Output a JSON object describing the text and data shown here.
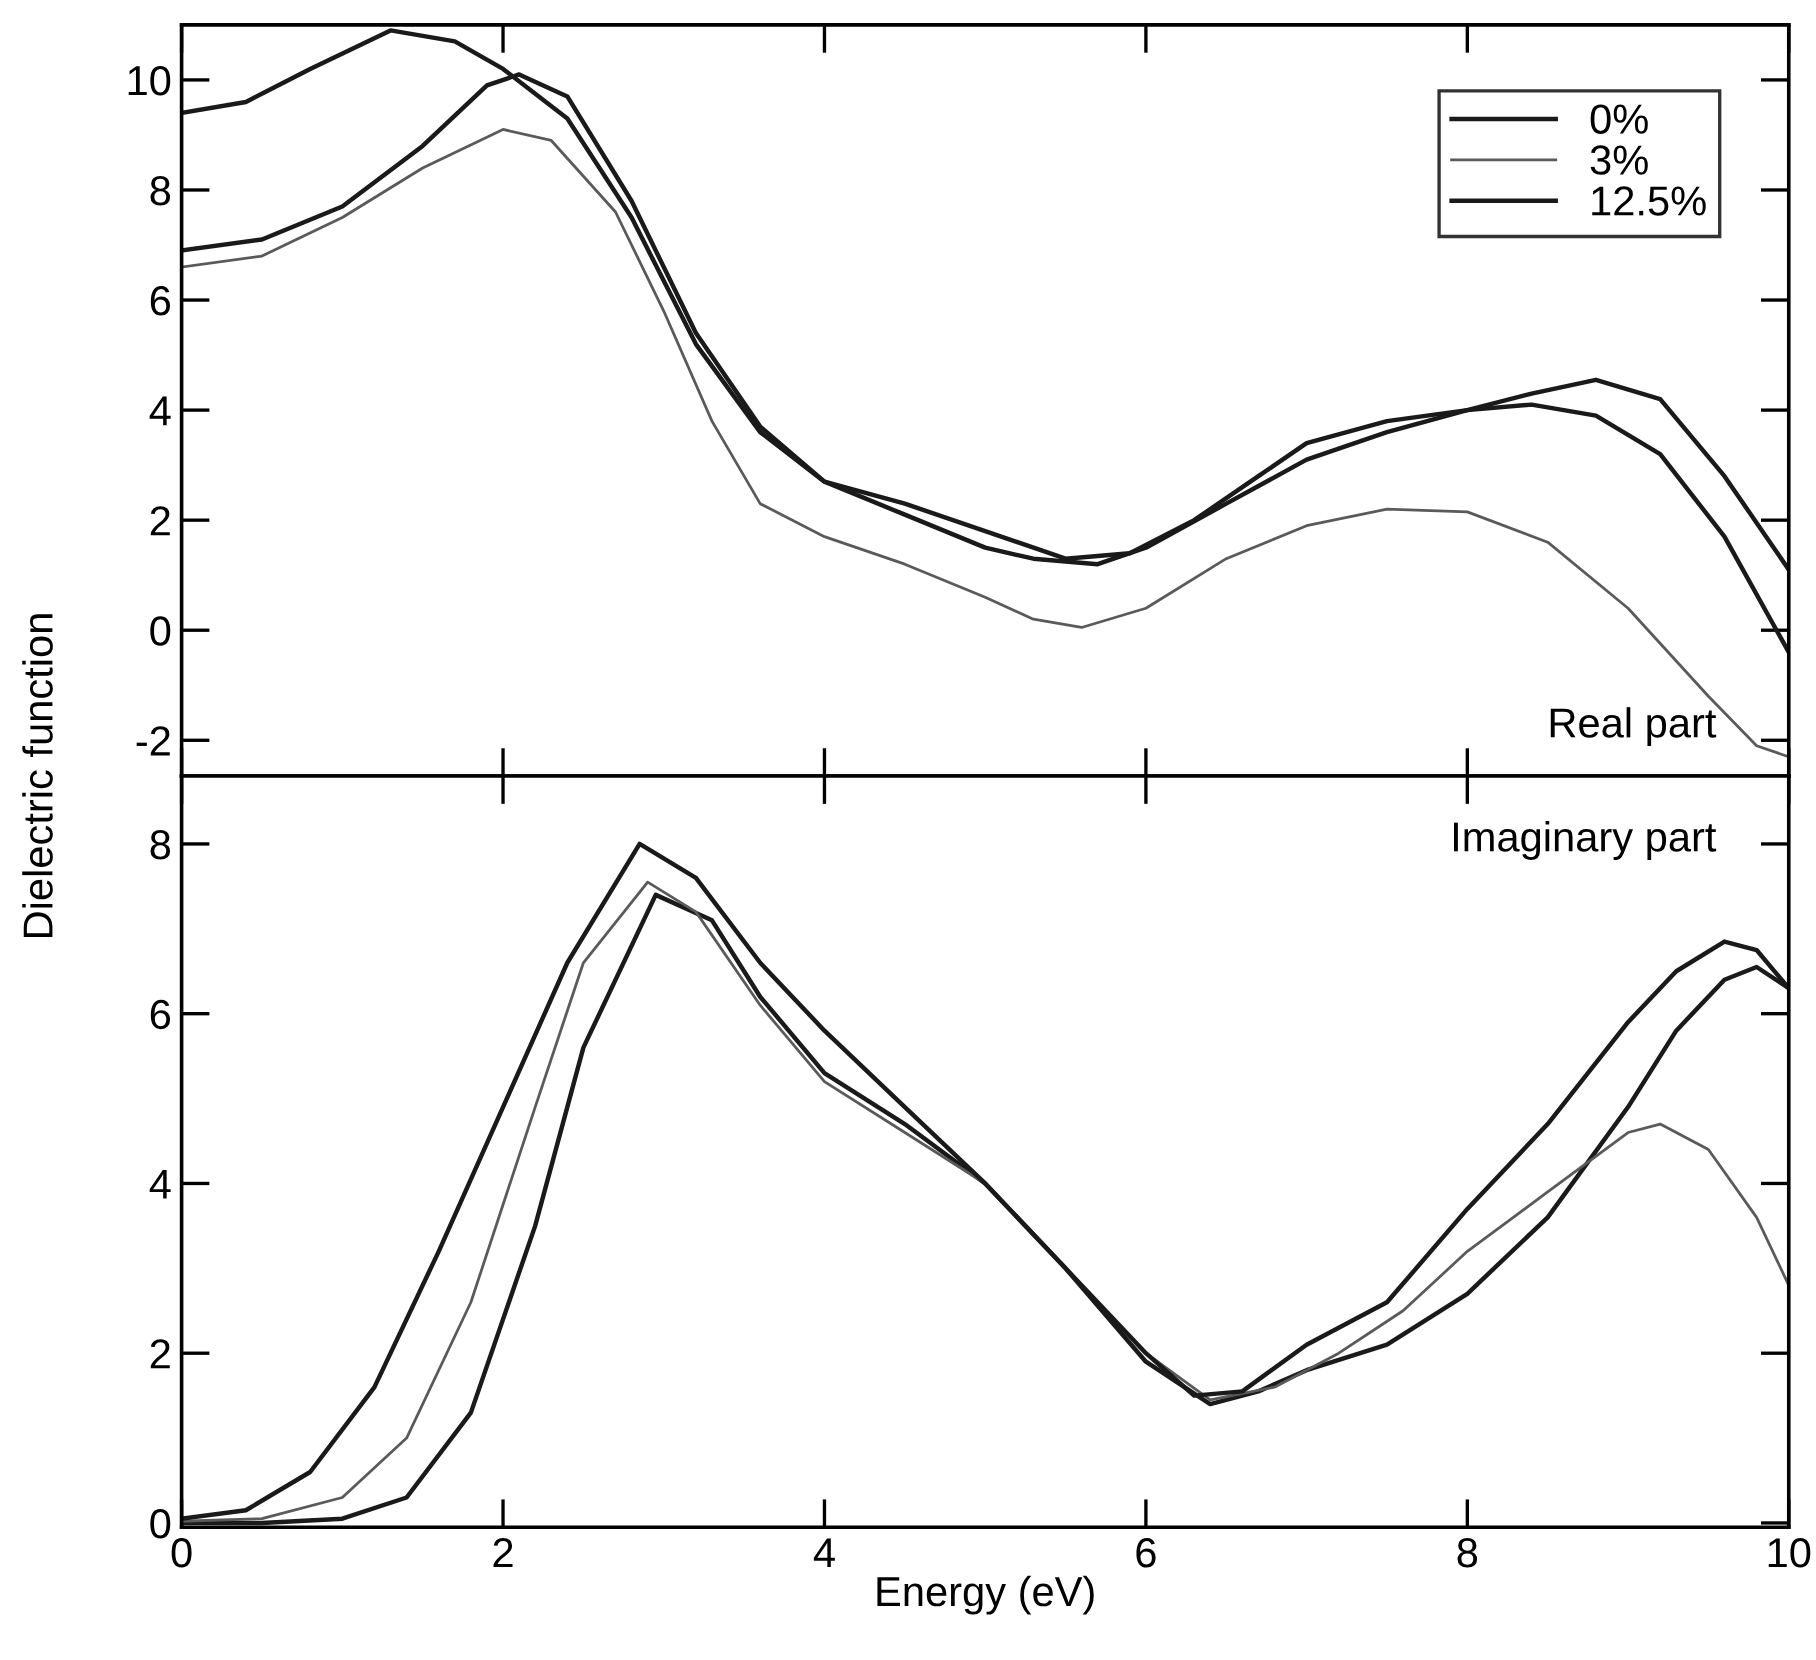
{
  "chart_data": [
    {
      "type": "line",
      "ylabel": "Dielectric function",
      "annotations": [
        "Real part"
      ],
      "legend": "top right",
      "tick_labels": "y",
      "grid": false,
      "marker": "none",
      "line_style": "solid",
      "xlim": [
        0,
        10
      ],
      "xticks": [
        0,
        2,
        4,
        6,
        8,
        10
      ],
      "ylim": [
        -2.65,
        11
      ],
      "yticks": [
        -2,
        0,
        2,
        4,
        6,
        8,
        10
      ],
      "series": [
        {
          "name": "0%",
          "color": "#1a1a1a",
          "x": [
            0,
            0.5,
            1.0,
            1.5,
            1.9,
            2.1,
            2.4,
            2.8,
            3.2,
            3.6,
            4.0,
            4.5,
            5.0,
            5.3,
            5.7,
            6.0,
            6.5,
            7.0,
            7.5,
            8.0,
            8.4,
            8.8,
            9.2,
            9.6,
            10
          ],
          "values": [
            6.9,
            7.1,
            7.7,
            8.8,
            9.9,
            10.1,
            9.7,
            7.8,
            5.4,
            3.7,
            2.7,
            2.1,
            1.5,
            1.3,
            1.2,
            1.5,
            2.3,
            3.1,
            3.6,
            4.0,
            4.3,
            4.55,
            4.2,
            2.8,
            1.1
          ]
        },
        {
          "name": "3%",
          "color": "#5a5a5a",
          "x": [
            0,
            0.5,
            1.0,
            1.5,
            2.0,
            2.3,
            2.7,
            3.0,
            3.3,
            3.6,
            4.0,
            4.5,
            5.0,
            5.3,
            5.6,
            6.0,
            6.5,
            7.0,
            7.5,
            8.0,
            8.5,
            9.0,
            9.5,
            9.8,
            10
          ],
          "values": [
            6.6,
            6.8,
            7.5,
            8.4,
            9.1,
            8.9,
            7.6,
            5.8,
            3.8,
            2.3,
            1.7,
            1.2,
            0.6,
            0.2,
            0.05,
            0.4,
            1.3,
            1.9,
            2.2,
            2.15,
            1.6,
            0.4,
            -1.2,
            -2.1,
            -2.3
          ]
        },
        {
          "name": "12.5%",
          "color": "#1a1a1a",
          "x": [
            0,
            0.4,
            0.8,
            1.3,
            1.7,
            2.0,
            2.4,
            2.8,
            3.2,
            3.6,
            4.0,
            4.5,
            5.0,
            5.5,
            5.9,
            6.3,
            6.7,
            7.0,
            7.5,
            8.0,
            8.4,
            8.8,
            9.2,
            9.6,
            10
          ],
          "values": [
            9.4,
            9.6,
            10.2,
            10.9,
            10.7,
            10.2,
            9.3,
            7.5,
            5.2,
            3.6,
            2.7,
            2.3,
            1.8,
            1.3,
            1.4,
            2.0,
            2.8,
            3.4,
            3.8,
            4.0,
            4.1,
            3.9,
            3.2,
            1.7,
            -0.4
          ]
        }
      ]
    },
    {
      "type": "line",
      "xlabel": "Energy (eV)",
      "annotations": [
        "Imaginary part"
      ],
      "grid": false,
      "marker": "none",
      "line_style": "solid",
      "xlim": [
        0,
        10
      ],
      "xticks": [
        0,
        2,
        4,
        6,
        8,
        10
      ],
      "ylim": [
        -0.05,
        8.8
      ],
      "yticks": [
        0,
        2,
        4,
        6,
        8
      ],
      "series": [
        {
          "color": "#1a1a1a",
          "x": [
            0,
            0.5,
            1.0,
            1.4,
            1.8,
            2.2,
            2.5,
            2.95,
            3.3,
            3.6,
            4.0,
            4.5,
            5.0,
            5.5,
            6.0,
            6.4,
            6.7,
            7.0,
            7.5,
            8.0,
            8.5,
            9.0,
            9.3,
            9.6,
            9.8,
            10
          ],
          "values": [
            0.0,
            0.0,
            0.05,
            0.3,
            1.3,
            3.5,
            5.6,
            7.4,
            7.1,
            6.2,
            5.3,
            4.7,
            4.0,
            3.0,
            1.9,
            1.4,
            1.55,
            1.8,
            2.1,
            2.7,
            3.6,
            4.9,
            5.8,
            6.4,
            6.55,
            6.3
          ]
        },
        {
          "color": "#5a5a5a",
          "x": [
            0,
            0.5,
            1.0,
            1.4,
            1.8,
            2.2,
            2.5,
            2.9,
            3.2,
            3.6,
            4.0,
            4.5,
            5.0,
            5.5,
            6.0,
            6.4,
            6.8,
            7.2,
            7.6,
            8.0,
            8.5,
            9.0,
            9.2,
            9.5,
            9.8,
            10
          ],
          "values": [
            0.02,
            0.05,
            0.3,
            1.0,
            2.6,
            4.9,
            6.6,
            7.55,
            7.2,
            6.1,
            5.2,
            4.6,
            4.0,
            3.0,
            2.0,
            1.45,
            1.6,
            2.0,
            2.5,
            3.2,
            3.9,
            4.6,
            4.7,
            4.4,
            3.6,
            2.8
          ]
        },
        {
          "color": "#1a1a1a",
          "x": [
            0,
            0.4,
            0.8,
            1.2,
            1.6,
            2.0,
            2.4,
            2.85,
            3.2,
            3.6,
            4.0,
            4.5,
            5.0,
            5.5,
            6.0,
            6.3,
            6.6,
            7.0,
            7.5,
            8.0,
            8.5,
            9.0,
            9.3,
            9.6,
            9.8,
            10
          ],
          "values": [
            0.05,
            0.15,
            0.6,
            1.6,
            3.2,
            4.9,
            6.6,
            8.0,
            7.6,
            6.6,
            5.8,
            4.9,
            4.0,
            3.0,
            2.0,
            1.5,
            1.55,
            2.1,
            2.6,
            3.7,
            4.7,
            5.9,
            6.5,
            6.85,
            6.75,
            6.3
          ]
        }
      ]
    }
  ]
}
